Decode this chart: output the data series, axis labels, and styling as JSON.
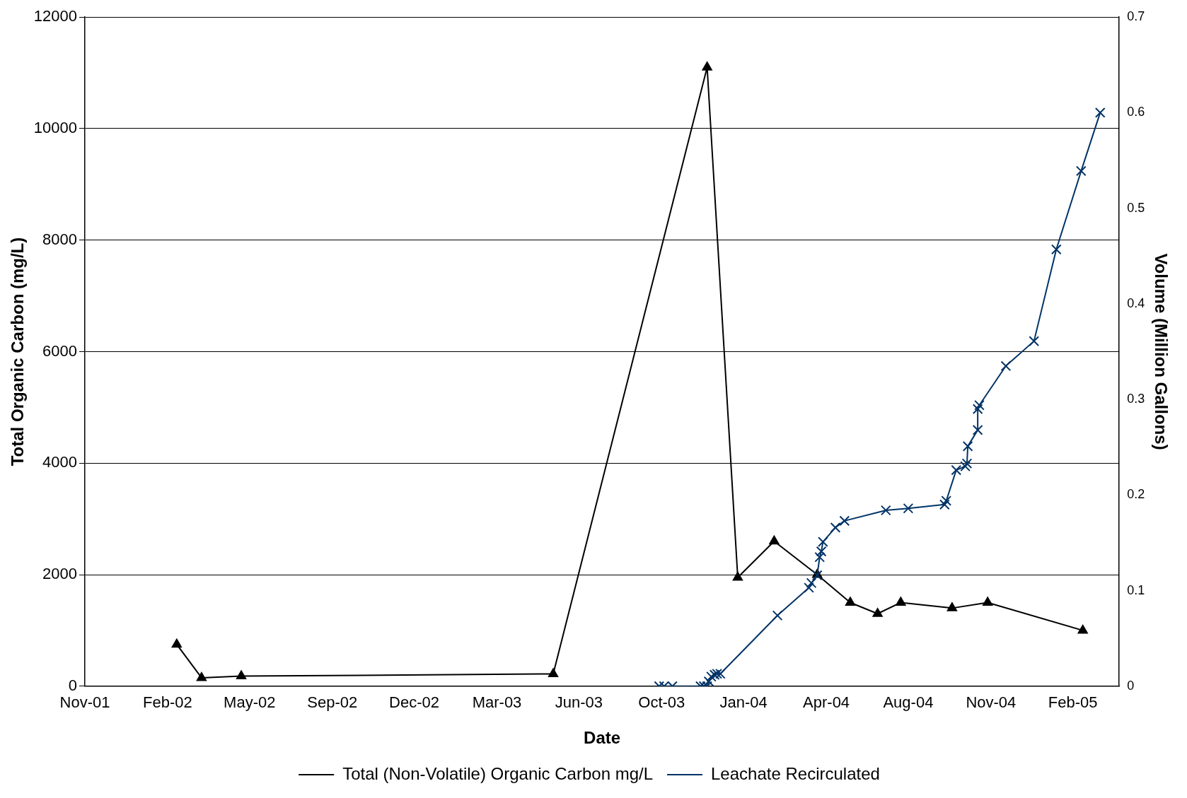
{
  "chart_data": {
    "type": "line",
    "xlabel": "Date",
    "ylabel": "Total Organic Carbon (mg/L)",
    "y2label": "Volume (Million Gallons)",
    "xlim": [
      "2001-11-10",
      "2005-04-13"
    ],
    "xticks": [
      {
        "value": "2001-11-10",
        "label": "Nov-01"
      },
      {
        "value": "2002-02-18",
        "label": "Feb-02"
      },
      {
        "value": "2002-05-28",
        "label": "May-02"
      },
      {
        "value": "2002-09-05",
        "label": "Sep-02"
      },
      {
        "value": "2002-12-13",
        "label": "Dec-02"
      },
      {
        "value": "2003-03-23",
        "label": "Mar-03"
      },
      {
        "value": "2003-06-30",
        "label": "Jun-03"
      },
      {
        "value": "2003-10-08",
        "label": "Oct-03"
      },
      {
        "value": "2004-01-15",
        "label": "Jan-04"
      },
      {
        "value": "2004-04-24",
        "label": "Apr-04"
      },
      {
        "value": "2004-08-01",
        "label": "Aug-04"
      },
      {
        "value": "2004-11-09",
        "label": "Nov-04"
      },
      {
        "value": "2005-02-16",
        "label": "Feb-05"
      }
    ],
    "ylim": [
      0,
      12000
    ],
    "yticks": [
      0,
      2000,
      4000,
      6000,
      8000,
      10000,
      12000
    ],
    "y2lim": [
      0,
      0.7
    ],
    "y2ticks": [
      0,
      0.1,
      0.2,
      0.3,
      0.4,
      0.5,
      0.6,
      0.7
    ],
    "grid": "y",
    "legend": "bottom",
    "line_style": "solid",
    "series": [
      {
        "name": "Total (Non-Volatile) Organic Carbon mg/L",
        "color": "#000000",
        "marker": "triangle",
        "x": [
          "2002-03-01",
          "2002-03-31",
          "2002-05-18",
          "2003-05-30",
          "2003-12-02",
          "2004-01-08",
          "2004-02-21",
          "2004-04-13",
          "2004-05-23",
          "2004-06-25",
          "2004-07-23",
          "2004-09-23",
          "2004-11-05",
          "2005-02-28"
        ],
        "values": [
          750,
          150,
          180,
          220,
          11100,
          1950,
          2600,
          2000,
          1500,
          1300,
          1500,
          1400,
          1500,
          1000
        ]
      },
      {
        "name": "Leachate Recirculated",
        "color": "#003366",
        "marker": "cross",
        "axis": "y2",
        "x": [
          "2003-10-05",
          "2003-10-11",
          "2003-10-21",
          "2003-11-24",
          "2003-11-28",
          "2003-12-02",
          "2003-12-04",
          "2003-12-07",
          "2003-12-11",
          "2003-12-14",
          "2003-12-18",
          "2004-02-25",
          "2004-04-03",
          "2004-04-06",
          "2004-04-13",
          "2004-04-16",
          "2004-04-18",
          "2004-04-20",
          "2004-05-05",
          "2004-05-16",
          "2004-07-05",
          "2004-08-01",
          "2004-09-14",
          "2004-09-16",
          "2004-09-28",
          "2004-10-09",
          "2004-10-11",
          "2004-10-12",
          "2004-10-24",
          "2004-10-24",
          "2004-10-26",
          "2004-11-27",
          "2004-12-31",
          "2005-01-27",
          "2005-02-26",
          "2005-03-21"
        ],
        "values": [
          0,
          0,
          0,
          0,
          0,
          0,
          0.005,
          0.01,
          0.012,
          0.013,
          0.013,
          0.074,
          0.103,
          0.108,
          0.116,
          0.135,
          0.141,
          0.151,
          0.166,
          0.173,
          0.184,
          0.186,
          0.19,
          0.194,
          0.226,
          0.23,
          0.233,
          0.251,
          0.268,
          0.29,
          0.294,
          0.335,
          0.361,
          0.457,
          0.539,
          0.6
        ]
      }
    ]
  }
}
